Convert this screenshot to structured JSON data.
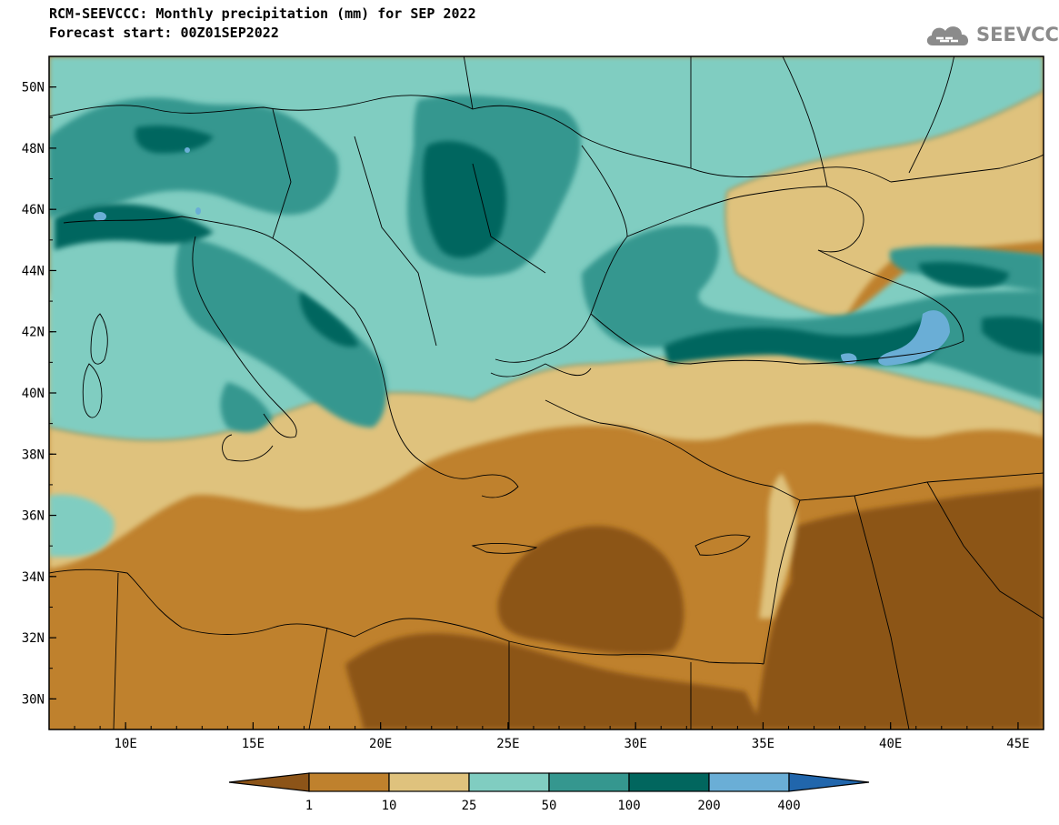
{
  "header": {
    "title": "RCM-SEEVCCC: Monthly precipitation (mm) for SEP 2022",
    "subtitle": "Forecast start: 00Z01SEP2022",
    "logo_text": "SEEVCCC"
  },
  "map": {
    "projection": "lat-lon",
    "lon_range": [
      7,
      46
    ],
    "lat_range": [
      29,
      51
    ],
    "lat_ticks": [
      "50N",
      "48N",
      "46N",
      "44N",
      "42N",
      "40N",
      "38N",
      "36N",
      "34N",
      "32N",
      "30N"
    ],
    "lon_ticks": [
      "10E",
      "15E",
      "20E",
      "25E",
      "30E",
      "35E",
      "40E",
      "45E"
    ]
  },
  "legend": {
    "labels": [
      "1",
      "10",
      "25",
      "50",
      "100",
      "200",
      "400"
    ],
    "colors": [
      "#8c5418",
      "#bf812d",
      "#dfc27d",
      "#80cdc1",
      "#35978f",
      "#01665e",
      "#6aaed6",
      "#2166ac"
    ]
  }
}
